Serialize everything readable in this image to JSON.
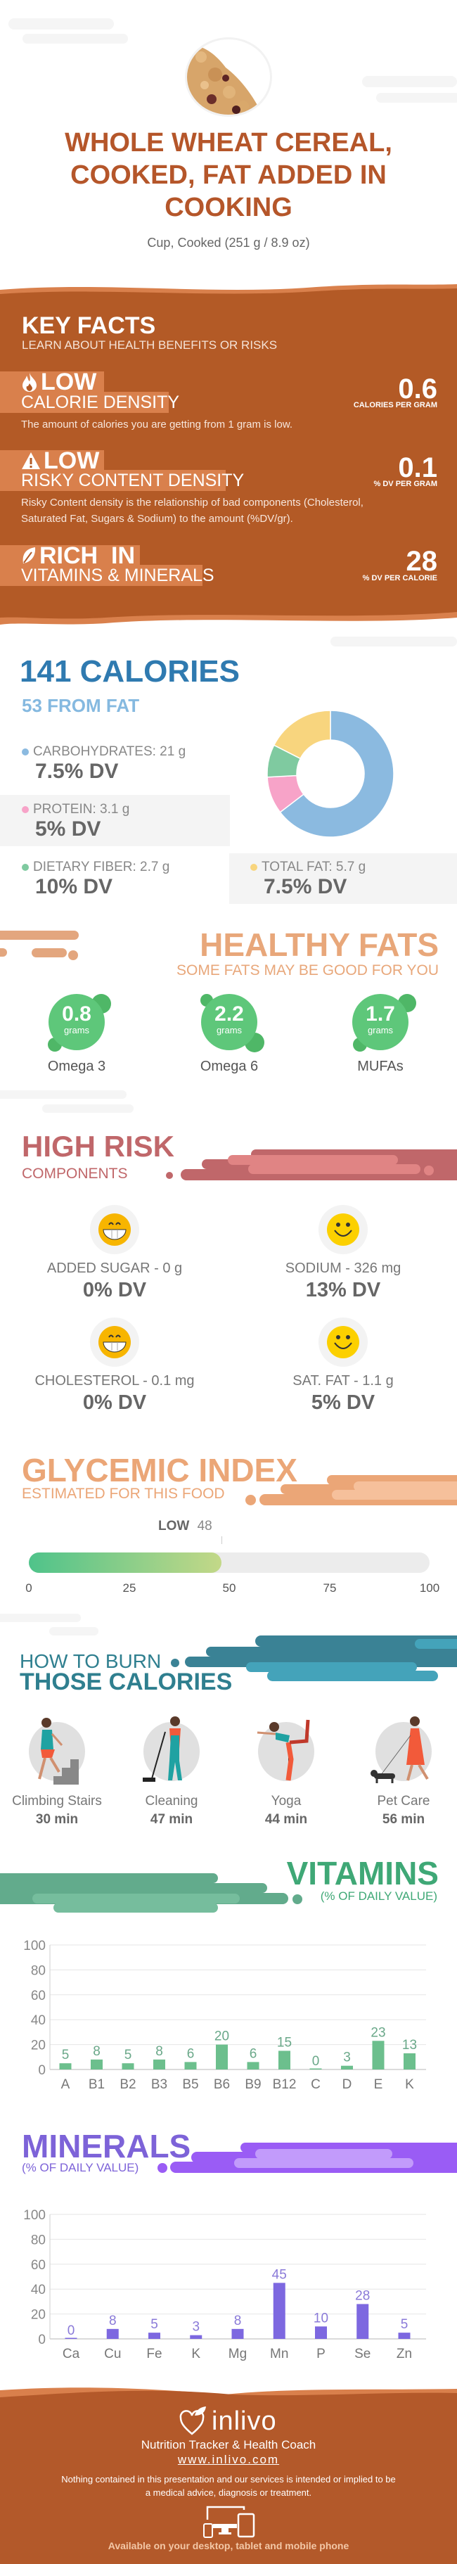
{
  "header": {
    "title_lines": [
      "WHOLE WHEAT CEREAL,",
      "COOKED, FAT ADDED IN",
      "COOKING"
    ],
    "serving": "Cup, Cooked (251 g / 8.9 oz)",
    "image": "cereal-photo"
  },
  "key_facts": {
    "title": "KEY FACTS",
    "subtitle": "LEARN ABOUT HEALTH BENEFITS OR RISKS",
    "items": [
      {
        "icon": "flame-icon",
        "level": "LOW",
        "label": "CALORIE DENSITY",
        "value": "0.6",
        "unit": "CALORIES PER GRAM",
        "description": "The amount of calories you are getting from 1 gram is low."
      },
      {
        "icon": "warning-icon",
        "level": "LOW",
        "label": "RISKY CONTENT DENSITY",
        "value": "0.1",
        "unit": "% DV PER GRAM",
        "description": "Risky Content density is the relationship of bad components (Cholesterol, Saturated Fat, Sugars & Sodium) to the amount (%DV/gr)."
      },
      {
        "icon": "leaf-icon",
        "level": "RICH  IN",
        "label": "VITAMINS & MINERALS",
        "value": "28",
        "unit": "% DV PER CALORIE"
      }
    ]
  },
  "calories": {
    "title": "141 CALORIES",
    "subtitle": "53 FROM FAT",
    "nutrients": [
      {
        "label": "CARBOHYDRATES: 21 g",
        "dv": "7.5% DV",
        "grams": 21,
        "color": "#8bbae0"
      },
      {
        "label": "PROTEIN: 3.1 g",
        "dv": "5% DV",
        "grams": 3.1,
        "color": "#f7a3c8"
      },
      {
        "label": "DIETARY FIBER: 2.7 g",
        "dv": "10% DV",
        "grams": 2.7,
        "color": "#7fcaa0"
      },
      {
        "label": "TOTAL FAT: 5.7 g",
        "dv": "7.5% DV",
        "grams": 5.7,
        "color": "#f8d57e"
      }
    ]
  },
  "healthy_fats": {
    "title": "HEALTHY FATS",
    "subtitle": "SOME FATS MAY BE GOOD FOR YOU",
    "items": [
      {
        "value": "0.8",
        "unit": "grams",
        "name": "Omega 3"
      },
      {
        "value": "2.2",
        "unit": "grams",
        "name": "Omega 6"
      },
      {
        "value": "1.7",
        "unit": "grams",
        "name": "MUFAs"
      }
    ]
  },
  "high_risk": {
    "title": "HIGH RISK",
    "subtitle": "COMPONENTS",
    "items": [
      {
        "icon": "grinning-face-icon",
        "label": "ADDED SUGAR - 0 g",
        "dv": "0% DV"
      },
      {
        "icon": "smiling-face-icon",
        "label": "SODIUM - 326 mg",
        "dv": "13% DV"
      },
      {
        "icon": "grinning-face-icon",
        "label": "CHOLESTEROL - 0.1 mg",
        "dv": "0% DV"
      },
      {
        "icon": "smiling-face-icon",
        "label": "SAT. FAT - 1.1 g",
        "dv": "5% DV"
      }
    ]
  },
  "glycemic": {
    "title": "GLYCEMIC INDEX",
    "subtitle": "ESTIMATED FOR THIS FOOD",
    "level": "LOW",
    "value": "48",
    "ticks": [
      "0",
      "25",
      "50",
      "75",
      "100"
    ]
  },
  "burn": {
    "title_light": "HOW TO BURN",
    "title_bold": "THOSE CALORIES",
    "activities": [
      {
        "name": "Climbing Stairs",
        "time": "30 min",
        "icon": "climbing-stairs-icon"
      },
      {
        "name": "Cleaning",
        "time": "47 min",
        "icon": "cleaning-icon"
      },
      {
        "name": "Yoga",
        "time": "44 min",
        "icon": "yoga-icon"
      },
      {
        "name": "Pet Care",
        "time": "56 min",
        "icon": "pet-care-icon"
      }
    ]
  },
  "vitamins": {
    "title": "VITAMINS",
    "subtitle": "(% OF DAILY VALUE)"
  },
  "minerals": {
    "title": "MINERALS",
    "subtitle": "(% OF DAILY VALUE)"
  },
  "chart_data": [
    {
      "type": "bar",
      "categories": [
        "A",
        "B1",
        "B2",
        "B3",
        "B5",
        "B6",
        "B9",
        "B12",
        "C",
        "D",
        "E",
        "K"
      ],
      "values": [
        5,
        8,
        5,
        8,
        6,
        20,
        6,
        15,
        0,
        3,
        23,
        13
      ],
      "value_labels": [
        "5",
        "8",
        "5",
        "8",
        "6",
        "20",
        "6",
        "15",
        "0",
        "3",
        "23",
        "13"
      ],
      "yticks": [
        "0",
        "20",
        "40",
        "60",
        "80",
        "100"
      ],
      "ylim": [
        0,
        100
      ],
      "grid": true,
      "color": "#6cbf8d",
      "label_color": "#6aa889"
    },
    {
      "type": "bar",
      "categories": [
        "Ca",
        "Cu",
        "Fe",
        "K",
        "Mg",
        "Mn",
        "P",
        "Se",
        "Zn"
      ],
      "values": [
        0,
        8,
        5,
        3,
        8,
        45,
        10,
        28,
        5
      ],
      "value_labels": [
        "0",
        "8",
        "5",
        "3",
        "8",
        "45",
        "10",
        "28",
        "5"
      ],
      "yticks": [
        "0",
        "20",
        "40",
        "60",
        "80",
        "100"
      ],
      "ylim": [
        0,
        100
      ],
      "grid": true,
      "color": "#7d68e0",
      "label_color": "#8a7ad8"
    }
  ],
  "footer": {
    "logo": "inlivo",
    "tagline": "Nutrition Tracker & Health Coach",
    "url": "www.inlivo.com",
    "disclaimer": "Nothing contained in this presentation and our services is intended or implied to be a medical advice, diagnosis or treatment.",
    "devices_icon": "devices-icon",
    "availability": "Available on your desktop, tablet and mobile phone"
  }
}
